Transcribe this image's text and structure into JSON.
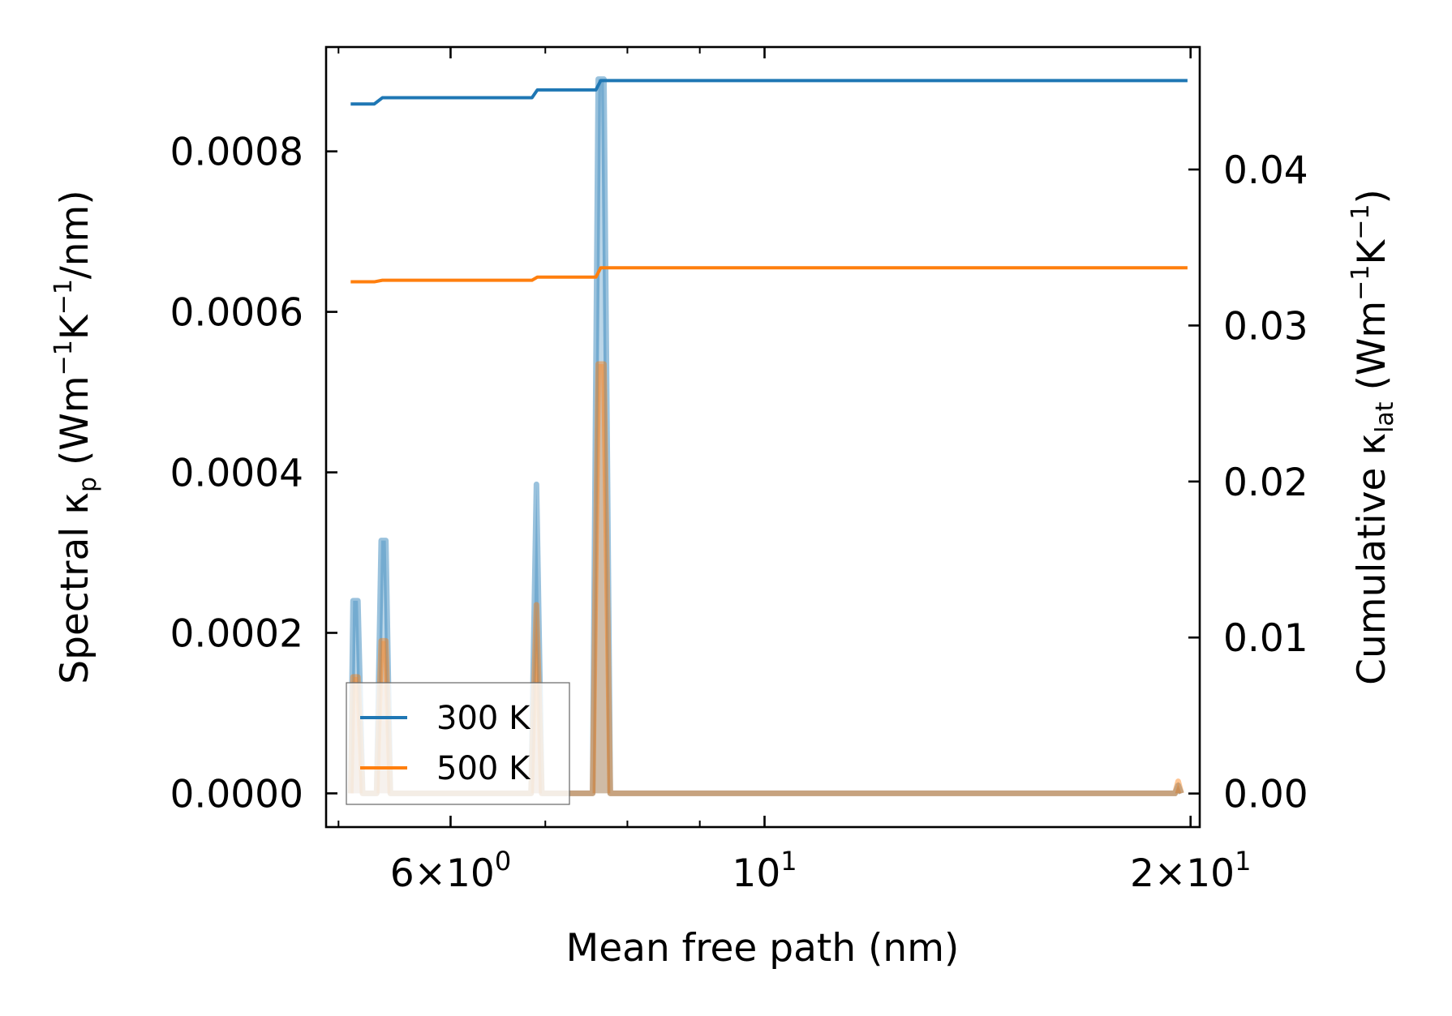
{
  "chart_data": {
    "type": "line",
    "xlabel": "Mean free path (nm)",
    "ylabel": "Spectral κ",
    "ylabel_sub": "p",
    "ylabel_unit": "(Wm",
    "ylabel_unit_rest": "K",
    "ylabel_unit_end": "/nm)",
    "y2label": "Cumulative κ",
    "y2label_sub": "lat",
    "y2label_unit": "(Wm",
    "y2label_unit_rest": "K",
    "y2label_unit_end": ")",
    "exp_minus1": "−1",
    "x_scale": "log",
    "xlim": [
      4.9,
      20.3
    ],
    "ylim": [
      -4.2e-05,
      0.00093
    ],
    "y2lim": [
      -0.00215,
      0.04785
    ],
    "x_ticks": [
      {
        "value": 6,
        "mantissa": "6×10",
        "exp": "0"
      },
      {
        "value": 10,
        "mantissa": "10",
        "exp": "1"
      },
      {
        "value": 20,
        "mantissa": "2×10",
        "exp": "1"
      }
    ],
    "x_minor_ticks": [
      5,
      7,
      8,
      9
    ],
    "y_ticks": [
      {
        "value": 0.0,
        "label": "0.0000"
      },
      {
        "value": 0.0002,
        "label": "0.0002"
      },
      {
        "value": 0.0004,
        "label": "0.0004"
      },
      {
        "value": 0.0006,
        "label": "0.0006"
      },
      {
        "value": 0.0008,
        "label": "0.0008"
      }
    ],
    "y2_ticks": [
      {
        "value": 0.0,
        "label": "0.00"
      },
      {
        "value": 0.01,
        "label": "0.01"
      },
      {
        "value": 0.02,
        "label": "0.02"
      },
      {
        "value": 0.03,
        "label": "0.03"
      },
      {
        "value": 0.04,
        "label": "0.04"
      }
    ],
    "legend_position": "lower-left",
    "series": [
      {
        "name": "300 K",
        "color": "#1f77b4",
        "spectral": {
          "x": [
            5.1,
            5.12,
            5.16,
            5.2,
            5.32,
            5.36,
            5.4,
            5.44,
            6.84,
            6.9,
            6.96,
            7.56,
            7.63,
            7.7,
            7.78,
            19.5,
            19.6,
            19.7
          ],
          "y": [
            0,
            0.00024,
            0.00024,
            0,
            0,
            0.000315,
            0.000315,
            0,
            0,
            0.000385,
            0,
            0,
            0.00089,
            0.00089,
            0,
            0,
            1e-05,
            0
          ]
        },
        "cumulative": {
          "x": [
            5.1,
            5.3,
            5.37,
            6.85,
            6.91,
            7.6,
            7.66,
            19.9
          ],
          "y": [
            0.0442,
            0.0442,
            0.0446,
            0.0446,
            0.0451,
            0.0451,
            0.0457,
            0.0457
          ]
        }
      },
      {
        "name": "500 K",
        "color": "#ff7f0e",
        "spectral": {
          "x": [
            5.1,
            5.12,
            5.16,
            5.2,
            5.32,
            5.36,
            5.4,
            5.44,
            6.84,
            6.9,
            6.96,
            7.56,
            7.63,
            7.7,
            7.78,
            19.5,
            19.6,
            19.7
          ],
          "y": [
            0,
            0.000145,
            0.000145,
            0,
            0,
            0.00019,
            0.00019,
            0,
            0,
            0.000235,
            0,
            0,
            0.000535,
            0.000535,
            0,
            0,
            1.5e-05,
            0
          ]
        },
        "cumulative": {
          "x": [
            5.1,
            5.3,
            5.37,
            6.85,
            6.91,
            7.6,
            7.66,
            19.9
          ],
          "y": [
            0.0328,
            0.0328,
            0.0329,
            0.0329,
            0.0331,
            0.0331,
            0.0337,
            0.0337
          ]
        }
      }
    ]
  }
}
